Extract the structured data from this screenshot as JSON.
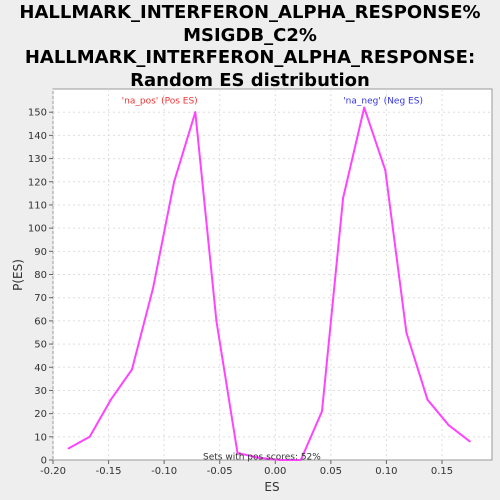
{
  "chart_data": {
    "type": "line",
    "title_lines": [
      "HALLMARK_INTERFERON_ALPHA_RESPONSE%",
      "MSIGDB_C2%",
      "HALLMARK_INTERFERON_ALPHA_RESPONSE:",
      "Random ES distribution"
    ],
    "xlabel": "ES",
    "ylabel": "P(ES)",
    "xlim": [
      -0.2,
      0.195
    ],
    "ylim": [
      0,
      160
    ],
    "xticks": [
      -0.2,
      -0.15,
      -0.1,
      -0.05,
      0.0,
      0.05,
      0.1,
      0.15
    ],
    "xtick_labels": [
      "-0.20",
      "-0.15",
      "-0.10",
      "-0.05",
      "0.00",
      "0.05",
      "0.10",
      "0.15"
    ],
    "yticks": [
      0,
      10,
      20,
      30,
      40,
      50,
      60,
      70,
      80,
      90,
      100,
      110,
      120,
      130,
      140,
      150
    ],
    "grid": true,
    "line_color": "#ff44ff",
    "series": [
      {
        "x": [
          -0.186,
          -0.167,
          -0.148,
          -0.129,
          -0.11,
          -0.091,
          -0.072,
          -0.053,
          -0.034,
          -0.015,
          0.004,
          0.023,
          0.042,
          0.061,
          0.08,
          0.099,
          0.118,
          0.137,
          0.156,
          0.175
        ],
        "values": [
          5,
          10,
          26,
          39,
          74,
          120,
          150,
          60,
          3,
          1,
          0,
          0,
          21,
          113,
          152,
          125,
          55,
          26,
          15,
          8
        ]
      }
    ],
    "annotations": [
      {
        "text": "'na_pos' (Pos ES)",
        "x": -0.104,
        "y": 155,
        "color": "#ee3333"
      },
      {
        "text": "'na_neg' (Neg ES)",
        "x": 0.097,
        "y": 155,
        "color": "#3333dd"
      },
      {
        "text": "Sets with pos scores: 52%",
        "x": -0.012,
        "y": 1.5,
        "color": "#333333"
      }
    ]
  }
}
